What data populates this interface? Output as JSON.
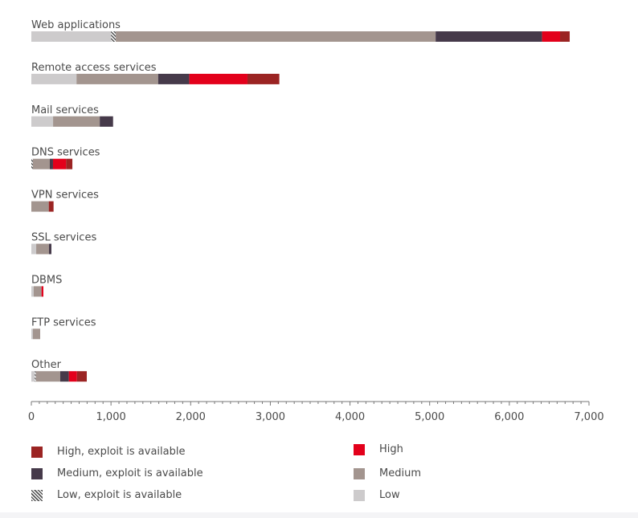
{
  "chart_data": {
    "type": "bar",
    "orientation": "horizontal",
    "stacked": true,
    "categories": [
      "Web applications",
      "Remote access services",
      "Mail services",
      "DNS services",
      "VPN services",
      "SSL services",
      "DBMS",
      "FTP services",
      "Other"
    ],
    "series": [
      {
        "name": "Low",
        "color": "#cdcbcc",
        "values": [
          1000,
          567,
          273,
          0,
          0,
          61,
          30,
          20,
          43
        ]
      },
      {
        "name": "Low, exploit is available",
        "color": "hatch",
        "values": [
          60,
          0,
          0,
          20,
          0,
          0,
          0,
          0,
          14
        ]
      },
      {
        "name": "Medium",
        "color": "#a3958f",
        "values": [
          4015,
          1025,
          586,
          212,
          219,
          161,
          98,
          91,
          306
        ]
      },
      {
        "name": "Medium, exploit is available",
        "color": "#463a4a",
        "values": [
          1336,
          391,
          167,
          40,
          0,
          30,
          0,
          0,
          108
        ]
      },
      {
        "name": "High",
        "color": "#e3001b",
        "values": [
          226,
          730,
          0,
          165,
          0,
          0,
          23,
          0,
          101
        ]
      },
      {
        "name": "High, exploit is available",
        "color": "#9b2423",
        "values": [
          121,
          400,
          0,
          78,
          60,
          0,
          0,
          0,
          124
        ]
      }
    ],
    "xlim": [
      0,
      7000
    ],
    "xticks": [
      0,
      1000,
      2000,
      3000,
      4000,
      5000,
      6000,
      7000
    ],
    "xtick_labels": [
      "0",
      "1,000",
      "2,000",
      "3,000",
      "4,000",
      "5,000",
      "6,000",
      "7,000"
    ],
    "title": "",
    "xlabel": "",
    "ylabel": "",
    "grid": false,
    "legend_placement": "bottom"
  },
  "legend": {
    "left": [
      {
        "label": "High, exploit is available",
        "color": "#9b2423"
      },
      {
        "label": "Medium, exploit is available",
        "color": "#463a4a"
      },
      {
        "label": "Low, exploit is available",
        "color": "hatch"
      }
    ],
    "right": [
      {
        "label": "High",
        "color": "#e3001b"
      },
      {
        "label": "Medium",
        "color": "#a3958f"
      },
      {
        "label": "Low",
        "color": "#cdcbcc"
      }
    ]
  }
}
